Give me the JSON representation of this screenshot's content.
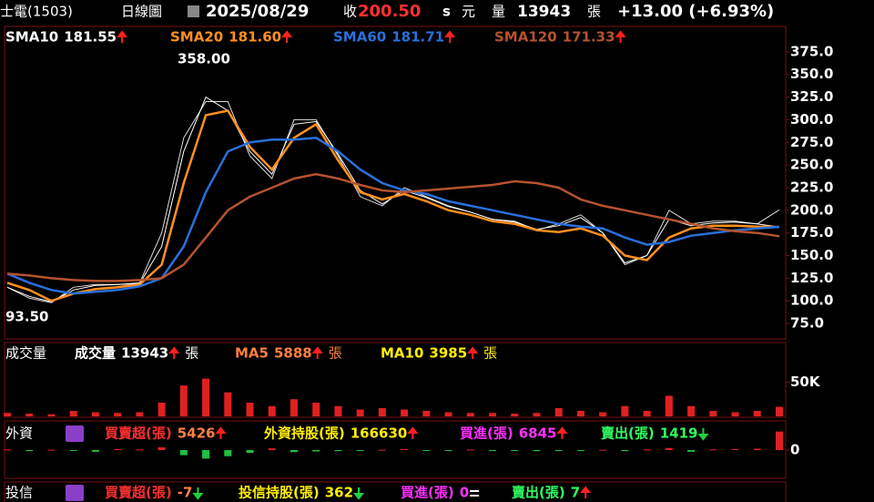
{
  "header": {
    "stock": "士電(1503)",
    "period": "日線圖",
    "date": "2025/08/29",
    "close_label": "收",
    "close": "200.50",
    "flag": "s",
    "currency": "元",
    "volume_label": "量",
    "volume": 13943,
    "unit": "張",
    "change": "+13.00 (+6.93%)"
  },
  "chart_data": [
    {
      "type": "line",
      "values": [
        115,
        103,
        98,
        115,
        118,
        118,
        120,
        175,
        280,
        320,
        320,
        260,
        235,
        300,
        300,
        260,
        215,
        205,
        225,
        215,
        205,
        198,
        190,
        188,
        178,
        185,
        195,
        175,
        140,
        150,
        200,
        185,
        188,
        188,
        185,
        200.5
      ],
      "color": "#dddddd",
      "series": [
        {
          "name": "SMA10",
          "value_label": "181.55",
          "trend": "up",
          "color": "#ffffff",
          "values": [
            115,
            105,
            99,
            112,
            117,
            118,
            119,
            160,
            265,
            325,
            310,
            265,
            240,
            295,
            298,
            262,
            222,
            207,
            222,
            214,
            204,
            198,
            190,
            187,
            179,
            183,
            192,
            175,
            142,
            150,
            190,
            183,
            186,
            187,
            185,
            181.55
          ]
        },
        {
          "name": "SMA20",
          "value_label": "181.60",
          "trend": "up",
          "color": "#ff9020",
          "values": [
            120,
            112,
            100,
            108,
            113,
            115,
            118,
            140,
            230,
            305,
            310,
            270,
            245,
            280,
            295,
            255,
            220,
            212,
            218,
            210,
            200,
            195,
            188,
            185,
            178,
            176,
            180,
            172,
            150,
            145,
            170,
            180,
            183,
            183,
            182,
            181.6
          ]
        },
        {
          "name": "SMA60",
          "value_label": "181.71",
          "trend": "up",
          "color": "#2a6fdb",
          "values": [
            130,
            120,
            112,
            108,
            110,
            112,
            116,
            125,
            160,
            220,
            265,
            275,
            278,
            278,
            280,
            265,
            245,
            230,
            222,
            218,
            210,
            205,
            200,
            195,
            190,
            185,
            182,
            180,
            170,
            162,
            165,
            172,
            175,
            178,
            180,
            181.71
          ]
        },
        {
          "name": "SMA120",
          "value_label": "171.33",
          "trend": "up",
          "color": "#b5532e",
          "values": [
            130,
            128,
            125,
            123,
            122,
            122,
            123,
            125,
            140,
            170,
            200,
            215,
            225,
            235,
            240,
            235,
            228,
            222,
            220,
            222,
            224,
            226,
            228,
            232,
            230,
            225,
            212,
            205,
            200,
            195,
            190,
            185,
            180,
            177,
            175,
            171.33
          ]
        }
      ],
      "annotations": [
        {
          "text": "358.00"
        },
        {
          "text": "93.50"
        }
      ],
      "ylim": [
        58,
        402
      ],
      "yticks": [
        {
          "value": 75,
          "label": "75.0"
        },
        {
          "value": 100,
          "label": "100.0"
        },
        {
          "value": 125,
          "label": "125.0"
        },
        {
          "value": 150,
          "label": "150.0"
        },
        {
          "value": 175,
          "label": "175.0"
        },
        {
          "value": 200,
          "label": "200.0"
        },
        {
          "value": 225,
          "label": "225.0"
        },
        {
          "value": 250,
          "label": "250.0"
        },
        {
          "value": 275,
          "label": "275.0"
        },
        {
          "value": 300,
          "label": "300.0"
        },
        {
          "value": 325,
          "label": "325.0"
        },
        {
          "value": 350,
          "label": "350.0"
        },
        {
          "value": 375,
          "label": "375.0"
        }
      ]
    },
    {
      "type": "bar",
      "title": "成交量",
      "color": "#e02020",
      "values": [
        5000,
        4000,
        3000,
        8000,
        6000,
        5000,
        6000,
        20000,
        45000,
        55000,
        35000,
        20000,
        15000,
        25000,
        20000,
        15000,
        10000,
        12000,
        10000,
        8000,
        6000,
        5000,
        5000,
        4000,
        5000,
        12000,
        8000,
        6000,
        15000,
        8000,
        30000,
        15000,
        8000,
        6000,
        8000,
        13943
      ],
      "ylim": [
        0,
        105000
      ],
      "yticks": [
        {
          "value": 50000,
          "label": "50K"
        }
      ],
      "legend": [
        {
          "name": "成交量",
          "value": 13943,
          "unit": "張",
          "trend": "up",
          "color": "#ffffff",
          "value_color": "#ffffff"
        },
        {
          "name": "MA5",
          "value": 5888,
          "unit": "張",
          "trend": "up",
          "color": "#ff8040",
          "value_color": "#ff8040"
        },
        {
          "name": "MA10",
          "value": 3985,
          "unit": "張",
          "trend": "up",
          "color": "#ffee00",
          "value_color": "#ffee00"
        }
      ]
    },
    {
      "type": "bar",
      "title": "外資",
      "colors": {
        "up": "#e02020",
        "down": "#20c040"
      },
      "values": [
        200,
        -300,
        100,
        -200,
        -500,
        300,
        200,
        800,
        -1500,
        -2500,
        -1800,
        -800,
        500,
        -600,
        -400,
        -300,
        -200,
        100,
        300,
        -200,
        -100,
        150,
        -150,
        -100,
        -300,
        -200,
        -100,
        100,
        -300,
        200,
        600,
        -500,
        200,
        300,
        400,
        5426
      ],
      "ylim": [
        -8000,
        8000
      ],
      "yticks": [
        0
      ],
      "legend": [
        {
          "name": "買賣超(張)",
          "value": 5426,
          "trend": "up",
          "color": "#ff3030",
          "value_color": "#ff8040"
        },
        {
          "name": "外資持股(張)",
          "value": 166630,
          "trend": "up",
          "color": "#ffee00",
          "value_color": "#ffee00"
        },
        {
          "name": "買進(張)",
          "value": 6845,
          "trend": "up",
          "color": "#ff30ff",
          "value_color": "#ff30ff"
        },
        {
          "name": "賣出(張)",
          "value": 1419,
          "trend": "down",
          "color": "#30ff60",
          "value_color": "#30ff60"
        }
      ]
    }
  ],
  "trust": {
    "title": "投信",
    "legend": [
      {
        "name": "買賣超(張)",
        "value": -7,
        "trend": "down",
        "color": "#ff3030",
        "value_color": "#ff8040"
      },
      {
        "name": "投信持股(張)",
        "value": 362,
        "trend": "down",
        "color": "#ffee00",
        "value_color": "#ffee00"
      },
      {
        "name": "買進(張)",
        "value": 0,
        "trend": "flat",
        "color": "#ff30ff",
        "value_color": "#ff30ff"
      },
      {
        "name": "賣出(張)",
        "value": 7,
        "trend": "up",
        "color": "#30ff60",
        "value_color": "#30ff60"
      }
    ]
  }
}
